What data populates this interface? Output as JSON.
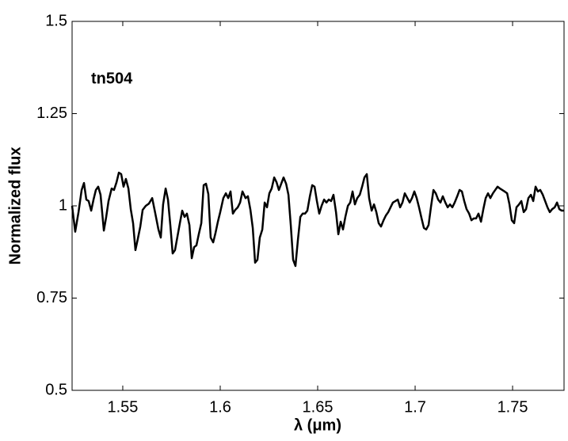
{
  "chart_data": {
    "type": "line",
    "annotation": "tn504",
    "xlabel": "λ (μm)",
    "ylabel": "Normalized flux",
    "xlim": [
      1.524,
      1.7764
    ],
    "ylim": [
      0.5,
      1.5
    ],
    "xticks": [
      1.55,
      1.6,
      1.65,
      1.7,
      1.75
    ],
    "yticks": [
      0.5,
      0.75,
      1,
      1.25,
      1.5
    ],
    "grid": false,
    "x": [
      1.524,
      1.5256,
      1.5273,
      1.5289,
      1.5301,
      1.5313,
      1.5325,
      1.5338,
      1.535,
      1.5362,
      1.5374,
      1.5386,
      1.5403,
      1.5415,
      1.5427,
      1.5443,
      1.5455,
      1.5468,
      1.548,
      1.5492,
      1.5504,
      1.5516,
      1.5529,
      1.5541,
      1.5553,
      1.5565,
      1.5577,
      1.559,
      1.5602,
      1.5618,
      1.5634,
      1.5651,
      1.5667,
      1.5683,
      1.5695,
      1.5707,
      1.572,
      1.5732,
      1.5744,
      1.5756,
      1.5768,
      1.5781,
      1.5793,
      1.5805,
      1.5817,
      1.5829,
      1.5842,
      1.5854,
      1.5866,
      1.5878,
      1.589,
      1.5903,
      1.5915,
      1.5927,
      1.5939,
      1.5951,
      1.5964,
      1.5976,
      1.5988,
      1.6,
      1.6016,
      1.6029,
      1.6041,
      1.6053,
      1.6065,
      1.6077,
      1.609,
      1.6102,
      1.6114,
      1.613,
      1.6142,
      1.6155,
      1.6167,
      1.6179,
      1.6191,
      1.6203,
      1.6216,
      1.6228,
      1.624,
      1.6252,
      1.6264,
      1.6277,
      1.6289,
      1.6301,
      1.6313,
      1.6325,
      1.6338,
      1.635,
      1.6362,
      1.6374,
      1.6386,
      1.6399,
      1.6411,
      1.6423,
      1.6435,
      1.6447,
      1.646,
      1.6472,
      1.6484,
      1.6496,
      1.6508,
      1.652,
      1.6533,
      1.6545,
      1.6557,
      1.6569,
      1.6581,
      1.6594,
      1.6606,
      1.6618,
      1.663,
      1.6642,
      1.6655,
      1.6667,
      1.6679,
      1.6691,
      1.6703,
      1.6716,
      1.6728,
      1.674,
      1.6752,
      1.6764,
      1.6777,
      1.6789,
      1.6801,
      1.6813,
      1.6825,
      1.6838,
      1.685,
      1.6862,
      1.6874,
      1.6886,
      1.6899,
      1.6911,
      1.6923,
      1.6935,
      1.6947,
      1.696,
      1.6972,
      1.6984,
      1.6996,
      1.7008,
      1.702,
      1.7033,
      1.7045,
      1.7057,
      1.7069,
      1.7081,
      1.7094,
      1.7106,
      1.7118,
      1.713,
      1.7142,
      1.7155,
      1.7167,
      1.7179,
      1.7191,
      1.7203,
      1.7216,
      1.7228,
      1.724,
      1.7252,
      1.7264,
      1.7277,
      1.7289,
      1.7301,
      1.7313,
      1.7325,
      1.7338,
      1.735,
      1.7362,
      1.7374,
      1.7386,
      1.7399,
      1.7411,
      1.7423,
      1.7435,
      1.7447,
      1.7459,
      1.7472,
      1.7484,
      1.7496,
      1.7508,
      1.752,
      1.7533,
      1.7545,
      1.7557,
      1.7569,
      1.7581,
      1.7594,
      1.7606,
      1.7618,
      1.763,
      1.7642,
      1.7655,
      1.7667,
      1.7679,
      1.7691,
      1.7703,
      1.7716,
      1.7728,
      1.774,
      1.7752,
      1.7764
    ],
    "series": [
      {
        "color": "#000000",
        "values": [
          1.0,
          0.93,
          0.983,
          1.043,
          1.062,
          1.017,
          1.013,
          0.987,
          1.017,
          1.043,
          1.052,
          1.03,
          0.933,
          0.97,
          1.013,
          1.047,
          1.043,
          1.064,
          1.09,
          1.086,
          1.052,
          1.073,
          1.047,
          0.991,
          0.953,
          0.88,
          0.91,
          0.944,
          0.989,
          1.0,
          1.006,
          1.021,
          0.979,
          0.936,
          0.914,
          1.004,
          1.047,
          1.017,
          0.948,
          0.871,
          0.88,
          0.918,
          0.953,
          0.987,
          0.97,
          0.979,
          0.948,
          0.858,
          0.888,
          0.893,
          0.923,
          0.953,
          1.056,
          1.06,
          1.032,
          0.914,
          0.901,
          0.927,
          0.957,
          0.983,
          1.021,
          1.034,
          1.021,
          1.039,
          0.979,
          0.989,
          0.996,
          1.009,
          1.039,
          1.021,
          1.026,
          0.989,
          0.94,
          0.846,
          0.854,
          0.914,
          0.936,
          1.009,
          0.996,
          1.034,
          1.047,
          1.077,
          1.064,
          1.043,
          1.06,
          1.077,
          1.06,
          1.03,
          0.948,
          0.854,
          0.837,
          0.91,
          0.97,
          0.979,
          0.979,
          0.987,
          1.026,
          1.056,
          1.052,
          1.013,
          0.979,
          1.0,
          1.017,
          1.009,
          1.017,
          1.013,
          1.03,
          0.983,
          0.923,
          0.957,
          0.936,
          0.97,
          1.0,
          1.009,
          1.039,
          1.004,
          1.021,
          1.03,
          1.052,
          1.077,
          1.086,
          1.021,
          0.987,
          1.004,
          0.983,
          0.953,
          0.944,
          0.961,
          0.974,
          0.983,
          0.996,
          1.009,
          1.013,
          1.017,
          0.996,
          1.009,
          1.034,
          1.021,
          1.009,
          1.021,
          1.039,
          1.021,
          0.996,
          0.966,
          0.94,
          0.936,
          0.948,
          0.996,
          1.043,
          1.034,
          1.017,
          1.009,
          1.026,
          1.009,
          0.996,
          1.004,
          0.996,
          1.009,
          1.026,
          1.043,
          1.039,
          1.013,
          0.991,
          0.979,
          0.961,
          0.966,
          0.966,
          0.979,
          0.957,
          0.991,
          1.021,
          1.034,
          1.021,
          1.034,
          1.043,
          1.052,
          1.047,
          1.043,
          1.039,
          1.034,
          1.004,
          0.961,
          0.953,
          0.996,
          1.004,
          1.013,
          0.983,
          0.991,
          1.021,
          1.03,
          1.013,
          1.052,
          1.039,
          1.043,
          1.03,
          1.013,
          0.996,
          0.983,
          0.991,
          0.996,
          1.009,
          0.991,
          0.987,
          0.987
        ]
      }
    ]
  }
}
